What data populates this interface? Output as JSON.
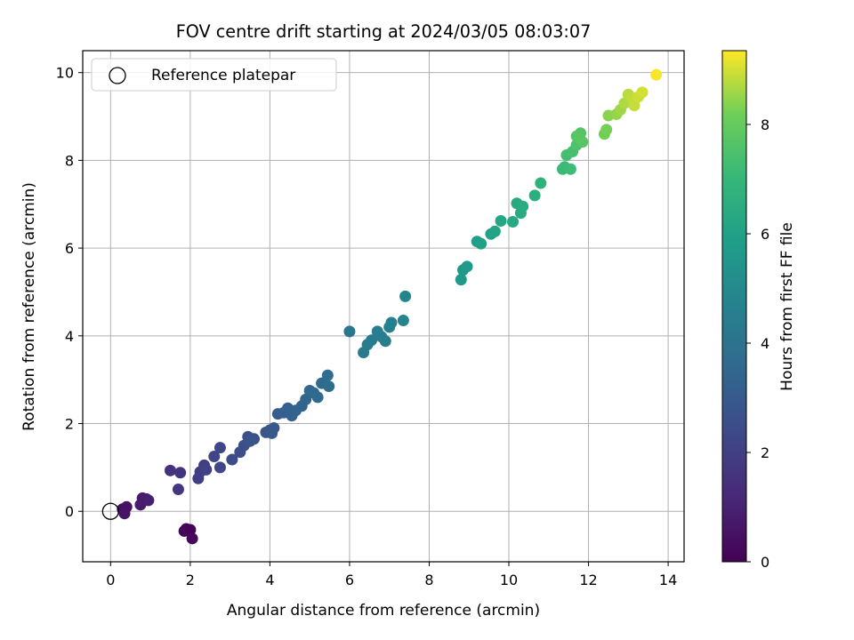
{
  "chart_data": {
    "type": "scatter",
    "title": "FOV centre drift starting at 2024/03/05 08:03:07",
    "xlabel": "Angular distance from reference (arcmin)",
    "ylabel": "Rotation from reference (arcmin)",
    "xlim": [
      -0.7,
      14.4
    ],
    "ylim": [
      -1.15,
      10.5
    ],
    "xticks": [
      0,
      2,
      4,
      6,
      8,
      10,
      12,
      14
    ],
    "yticks": [
      0,
      2,
      4,
      6,
      8,
      10
    ],
    "grid": true,
    "legend": {
      "position": "top-left",
      "entries": [
        "Reference platepar"
      ]
    },
    "reference_point": {
      "x": 0,
      "y": 0,
      "label": "Reference platepar"
    },
    "colorbar": {
      "label": "Hours from first FF file",
      "colormap": "viridis",
      "range": [
        0,
        9.35
      ],
      "ticks": [
        0,
        2,
        4,
        6,
        8
      ]
    },
    "points": [
      {
        "x": 1.9,
        "y": -0.4,
        "c": 0.05
      },
      {
        "x": 2.0,
        "y": -0.42,
        "c": 0.1
      },
      {
        "x": 1.85,
        "y": -0.45,
        "c": 0.15
      },
      {
        "x": 2.05,
        "y": -0.62,
        "c": 0.2
      },
      {
        "x": 0.3,
        "y": 0.05,
        "c": 0.45
      },
      {
        "x": 0.4,
        "y": 0.1,
        "c": 0.5
      },
      {
        "x": 0.35,
        "y": -0.05,
        "c": 0.55
      },
      {
        "x": 0.8,
        "y": 0.3,
        "c": 0.75
      },
      {
        "x": 0.75,
        "y": 0.15,
        "c": 0.8
      },
      {
        "x": 0.9,
        "y": 0.28,
        "c": 0.85
      },
      {
        "x": 0.95,
        "y": 0.25,
        "c": 0.9
      },
      {
        "x": 1.5,
        "y": 0.93,
        "c": 1.5
      },
      {
        "x": 1.75,
        "y": 0.88,
        "c": 1.6
      },
      {
        "x": 1.7,
        "y": 0.5,
        "c": 1.65
      },
      {
        "x": 2.25,
        "y": 0.9,
        "c": 1.9
      },
      {
        "x": 2.35,
        "y": 1.05,
        "c": 1.95
      },
      {
        "x": 2.2,
        "y": 0.75,
        "c": 2.0
      },
      {
        "x": 2.4,
        "y": 0.95,
        "c": 2.1
      },
      {
        "x": 2.6,
        "y": 1.25,
        "c": 2.2
      },
      {
        "x": 2.75,
        "y": 1.0,
        "c": 2.25
      },
      {
        "x": 2.75,
        "y": 1.45,
        "c": 2.3
      },
      {
        "x": 3.05,
        "y": 1.18,
        "c": 2.4
      },
      {
        "x": 3.25,
        "y": 1.35,
        "c": 2.5
      },
      {
        "x": 3.35,
        "y": 1.5,
        "c": 2.55
      },
      {
        "x": 3.45,
        "y": 1.7,
        "c": 2.6
      },
      {
        "x": 3.6,
        "y": 1.65,
        "c": 2.65
      },
      {
        "x": 3.5,
        "y": 1.6,
        "c": 2.7
      },
      {
        "x": 3.9,
        "y": 1.8,
        "c": 2.8
      },
      {
        "x": 4.0,
        "y": 1.85,
        "c": 2.85
      },
      {
        "x": 4.1,
        "y": 1.9,
        "c": 2.9
      },
      {
        "x": 4.05,
        "y": 1.78,
        "c": 2.95
      },
      {
        "x": 4.2,
        "y": 2.22,
        "c": 3.1
      },
      {
        "x": 4.35,
        "y": 2.25,
        "c": 3.15
      },
      {
        "x": 4.45,
        "y": 2.35,
        "c": 3.2
      },
      {
        "x": 4.55,
        "y": 2.18,
        "c": 3.25
      },
      {
        "x": 4.65,
        "y": 2.3,
        "c": 3.3
      },
      {
        "x": 4.8,
        "y": 2.4,
        "c": 3.35
      },
      {
        "x": 4.9,
        "y": 2.55,
        "c": 3.4
      },
      {
        "x": 5.0,
        "y": 2.75,
        "c": 3.5
      },
      {
        "x": 5.1,
        "y": 2.7,
        "c": 3.55
      },
      {
        "x": 5.2,
        "y": 2.6,
        "c": 3.6
      },
      {
        "x": 5.3,
        "y": 2.92,
        "c": 3.65
      },
      {
        "x": 5.45,
        "y": 3.1,
        "c": 3.7
      },
      {
        "x": 5.48,
        "y": 2.85,
        "c": 3.75
      },
      {
        "x": 6.0,
        "y": 4.1,
        "c": 4.1
      },
      {
        "x": 6.35,
        "y": 3.62,
        "c": 4.3
      },
      {
        "x": 6.45,
        "y": 3.8,
        "c": 4.35
      },
      {
        "x": 6.55,
        "y": 3.9,
        "c": 4.4
      },
      {
        "x": 6.7,
        "y": 4.1,
        "c": 4.45
      },
      {
        "x": 6.8,
        "y": 3.98,
        "c": 4.5
      },
      {
        "x": 6.9,
        "y": 3.88,
        "c": 4.55
      },
      {
        "x": 7.0,
        "y": 4.2,
        "c": 4.6
      },
      {
        "x": 7.05,
        "y": 4.3,
        "c": 4.65
      },
      {
        "x": 7.35,
        "y": 4.35,
        "c": 4.75
      },
      {
        "x": 7.4,
        "y": 4.9,
        "c": 4.8
      },
      {
        "x": 8.8,
        "y": 5.28,
        "c": 5.6
      },
      {
        "x": 8.85,
        "y": 5.5,
        "c": 5.65
      },
      {
        "x": 8.95,
        "y": 5.58,
        "c": 5.7
      },
      {
        "x": 9.2,
        "y": 6.15,
        "c": 5.9
      },
      {
        "x": 9.3,
        "y": 6.1,
        "c": 5.95
      },
      {
        "x": 9.55,
        "y": 6.32,
        "c": 6.05
      },
      {
        "x": 9.65,
        "y": 6.38,
        "c": 6.1
      },
      {
        "x": 9.8,
        "y": 6.62,
        "c": 6.15
      },
      {
        "x": 10.1,
        "y": 6.6,
        "c": 6.3
      },
      {
        "x": 10.2,
        "y": 7.02,
        "c": 6.35
      },
      {
        "x": 10.3,
        "y": 6.8,
        "c": 6.4
      },
      {
        "x": 10.35,
        "y": 6.95,
        "c": 6.45
      },
      {
        "x": 10.65,
        "y": 7.2,
        "c": 6.6
      },
      {
        "x": 10.8,
        "y": 7.48,
        "c": 6.7
      },
      {
        "x": 11.35,
        "y": 7.8,
        "c": 7.1
      },
      {
        "x": 11.4,
        "y": 7.85,
        "c": 7.15
      },
      {
        "x": 11.55,
        "y": 7.8,
        "c": 7.2
      },
      {
        "x": 11.45,
        "y": 8.12,
        "c": 7.3
      },
      {
        "x": 11.6,
        "y": 8.2,
        "c": 7.4
      },
      {
        "x": 11.7,
        "y": 8.35,
        "c": 7.5
      },
      {
        "x": 11.75,
        "y": 8.5,
        "c": 7.6
      },
      {
        "x": 11.8,
        "y": 8.62,
        "c": 7.65
      },
      {
        "x": 11.7,
        "y": 8.55,
        "c": 7.7
      },
      {
        "x": 11.85,
        "y": 8.42,
        "c": 7.75
      },
      {
        "x": 12.4,
        "y": 8.6,
        "c": 8.2
      },
      {
        "x": 12.45,
        "y": 8.7,
        "c": 8.25
      },
      {
        "x": 12.5,
        "y": 9.02,
        "c": 8.4
      },
      {
        "x": 12.7,
        "y": 9.05,
        "c": 8.5
      },
      {
        "x": 12.8,
        "y": 9.15,
        "c": 8.6
      },
      {
        "x": 12.9,
        "y": 9.3,
        "c": 8.7
      },
      {
        "x": 13.0,
        "y": 9.5,
        "c": 8.8
      },
      {
        "x": 13.1,
        "y": 9.42,
        "c": 8.85
      },
      {
        "x": 13.15,
        "y": 9.25,
        "c": 8.9
      },
      {
        "x": 13.25,
        "y": 9.45,
        "c": 8.95
      },
      {
        "x": 13.35,
        "y": 9.55,
        "c": 9.0
      },
      {
        "x": 13.7,
        "y": 9.95,
        "c": 9.3
      }
    ]
  }
}
